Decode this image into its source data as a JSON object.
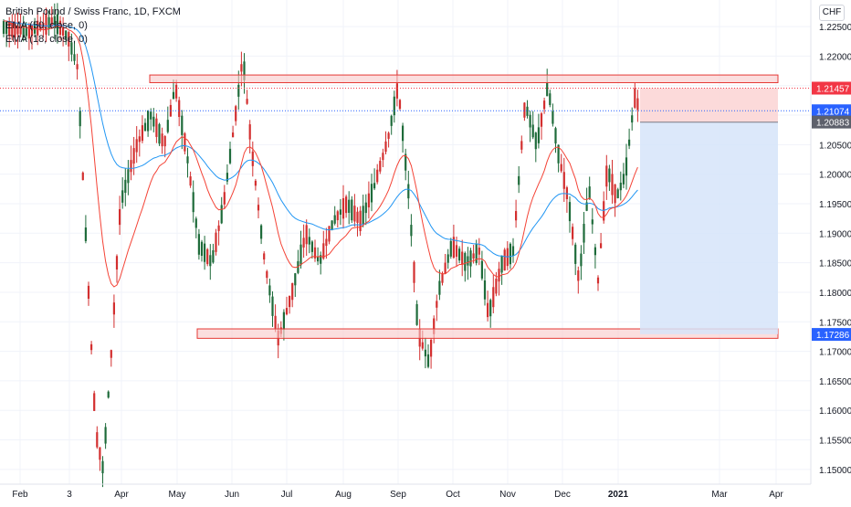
{
  "legend": {
    "symbol": "British Pound / Swiss Franc, 1D, FXCM",
    "ema50": "EMA (50, close, 0)",
    "ema18": "EMA (18, close, 0)"
  },
  "currency_button": "CHF",
  "colors": {
    "up": "#26a69a",
    "down": "#ef5350",
    "bull_candle": "#1e6b3a",
    "bear_candle": "#d32f2f",
    "ema50": "#2196f3",
    "ema18": "#f44336",
    "zone_fill": "#f8c8c8",
    "zone_stroke": "#e53935",
    "target_fill": "#d6e4f9",
    "stop_fill": "#fbd4d4",
    "price_red": "#f23645",
    "price_blue": "#2962ff",
    "price_gray": "#5d606b"
  },
  "chart_data": {
    "type": "candlestick",
    "title": "British Pound / Swiss Franc, 1D, FXCM",
    "y_axis": {
      "min": 1.1475,
      "max": 1.2295,
      "ticks": [
        "1.22500",
        "1.22000",
        "1.21500",
        "1.21000",
        "1.20500",
        "1.20000",
        "1.19500",
        "1.19000",
        "1.18500",
        "1.18000",
        "1.17500",
        "1.17000",
        "1.16500",
        "1.16000",
        "1.15500",
        "1.15000"
      ]
    },
    "x_axis": {
      "labels": [
        "Feb",
        "3",
        "Apr",
        "May",
        "Jun",
        "Jul",
        "Aug",
        "Sep",
        "Oct",
        "Nov",
        "Dec",
        "2021",
        "Mar",
        "Apr"
      ]
    },
    "price_labels": [
      {
        "value": "1.21457",
        "kind": "red"
      },
      {
        "value": "1.21074",
        "kind": "blue"
      },
      {
        "value": "1.20883",
        "kind": "gray"
      },
      {
        "value": "1.17286",
        "kind": "blue"
      }
    ],
    "resistance_zone": [
      1.2155,
      1.2168
    ],
    "support_zone": [
      1.1722,
      1.1738
    ],
    "position": {
      "entry": 1.2088,
      "stop": 1.2146,
      "target": 1.1729
    },
    "series": [
      {
        "name": "EMA (50, close, 0)"
      },
      {
        "name": "EMA (18, close, 0)"
      }
    ]
  }
}
